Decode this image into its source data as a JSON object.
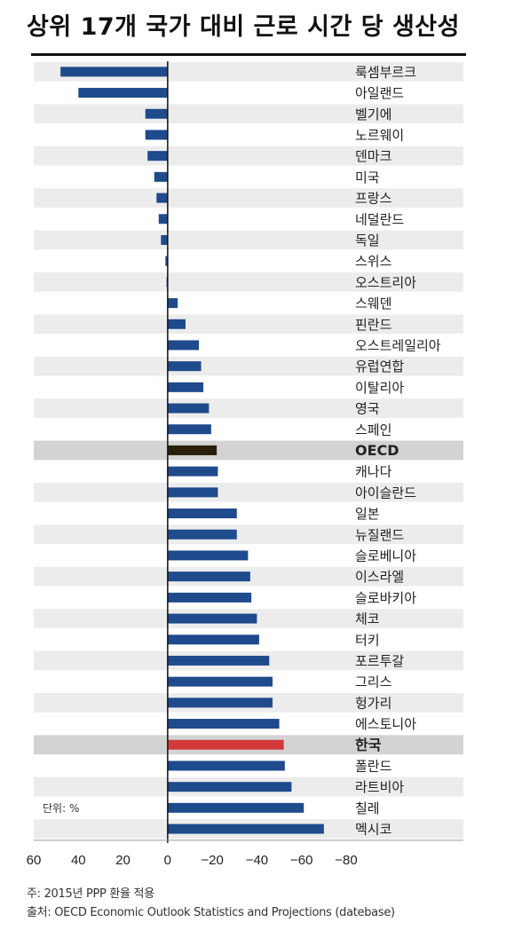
{
  "title": "상위 17개 국가 대비 근로 시간 당 생산성",
  "unit_note": "단위: %",
  "notes": {
    "note1": "주: 2015년 PPP 환율 적용",
    "note2": "출처: OECD Economic Outlook Statistics and Projections (datebase)"
  },
  "colors": {
    "bar": "#1f4a8c",
    "oecd_bar": "#2a1e08",
    "korea_bar": "#d23a3a",
    "stripe": "#ececec",
    "highlight_row": "#d3d3d3"
  },
  "chart_data": {
    "type": "bar",
    "orientation": "horizontal",
    "xlim": [
      60,
      -80
    ],
    "x_reversed": true,
    "xticks": [
      60,
      40,
      20,
      0,
      -20,
      -40,
      -60,
      -80
    ],
    "xtick_labels": [
      "60",
      "40",
      "20",
      "0",
      "−20",
      "−40",
      "−60",
      "−80"
    ],
    "grid": false,
    "highlight": [
      "OECD",
      "한국"
    ],
    "categories": [
      "룩셈부르크",
      "아일랜드",
      "벨기에",
      "노르웨이",
      "덴마크",
      "미국",
      "프랑스",
      "네덜란드",
      "독일",
      "스위스",
      "오스트리아",
      "스웨덴",
      "핀란드",
      "오스트레일리아",
      "유럽연합",
      "이탈리아",
      "영국",
      "스페인",
      "OECD",
      "캐나다",
      "아이슬란드",
      "일본",
      "뉴질랜드",
      "슬로베니아",
      "이스라엘",
      "슬로바키아",
      "체코",
      "터키",
      "포르투갈",
      "그리스",
      "헝가리",
      "에스토니아",
      "한국",
      "폴란드",
      "라트비아",
      "칠레",
      "멕시코"
    ],
    "values": [
      48,
      40,
      10,
      10,
      9,
      6,
      5,
      4,
      3,
      1,
      0.5,
      -4.5,
      -8,
      -14,
      -15,
      -16,
      -18.5,
      -19.5,
      -22,
      -22.5,
      -22.5,
      -31,
      -31,
      -36,
      -37,
      -37.5,
      -40,
      -41,
      -45.5,
      -47,
      -47,
      -50,
      -52,
      -52.5,
      -55.5,
      -61,
      -70
    ]
  }
}
